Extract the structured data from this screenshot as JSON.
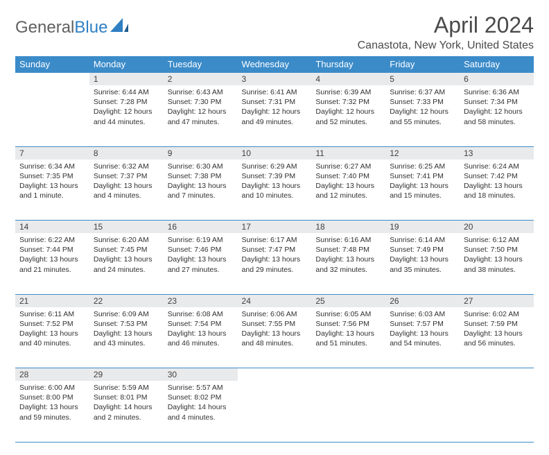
{
  "brand": {
    "part1": "General",
    "part2": "Blue"
  },
  "title": "April 2024",
  "location": "Canastota, New York, United States",
  "colors": {
    "header_bg": "#3b8bc9",
    "header_text": "#ffffff",
    "daynum_bg": "#e9eaeb",
    "text": "#303030",
    "brand_gray": "#606060",
    "brand_blue": "#2f7fc2"
  },
  "weekdays": [
    "Sunday",
    "Monday",
    "Tuesday",
    "Wednesday",
    "Thursday",
    "Friday",
    "Saturday"
  ],
  "weeks": [
    [
      null,
      {
        "n": "1",
        "sr": "6:44 AM",
        "ss": "7:28 PM",
        "dl": "12 hours and 44 minutes."
      },
      {
        "n": "2",
        "sr": "6:43 AM",
        "ss": "7:30 PM",
        "dl": "12 hours and 47 minutes."
      },
      {
        "n": "3",
        "sr": "6:41 AM",
        "ss": "7:31 PM",
        "dl": "12 hours and 49 minutes."
      },
      {
        "n": "4",
        "sr": "6:39 AM",
        "ss": "7:32 PM",
        "dl": "12 hours and 52 minutes."
      },
      {
        "n": "5",
        "sr": "6:37 AM",
        "ss": "7:33 PM",
        "dl": "12 hours and 55 minutes."
      },
      {
        "n": "6",
        "sr": "6:36 AM",
        "ss": "7:34 PM",
        "dl": "12 hours and 58 minutes."
      }
    ],
    [
      {
        "n": "7",
        "sr": "6:34 AM",
        "ss": "7:35 PM",
        "dl": "13 hours and 1 minute."
      },
      {
        "n": "8",
        "sr": "6:32 AM",
        "ss": "7:37 PM",
        "dl": "13 hours and 4 minutes."
      },
      {
        "n": "9",
        "sr": "6:30 AM",
        "ss": "7:38 PM",
        "dl": "13 hours and 7 minutes."
      },
      {
        "n": "10",
        "sr": "6:29 AM",
        "ss": "7:39 PM",
        "dl": "13 hours and 10 minutes."
      },
      {
        "n": "11",
        "sr": "6:27 AM",
        "ss": "7:40 PM",
        "dl": "13 hours and 12 minutes."
      },
      {
        "n": "12",
        "sr": "6:25 AM",
        "ss": "7:41 PM",
        "dl": "13 hours and 15 minutes."
      },
      {
        "n": "13",
        "sr": "6:24 AM",
        "ss": "7:42 PM",
        "dl": "13 hours and 18 minutes."
      }
    ],
    [
      {
        "n": "14",
        "sr": "6:22 AM",
        "ss": "7:44 PM",
        "dl": "13 hours and 21 minutes."
      },
      {
        "n": "15",
        "sr": "6:20 AM",
        "ss": "7:45 PM",
        "dl": "13 hours and 24 minutes."
      },
      {
        "n": "16",
        "sr": "6:19 AM",
        "ss": "7:46 PM",
        "dl": "13 hours and 27 minutes."
      },
      {
        "n": "17",
        "sr": "6:17 AM",
        "ss": "7:47 PM",
        "dl": "13 hours and 29 minutes."
      },
      {
        "n": "18",
        "sr": "6:16 AM",
        "ss": "7:48 PM",
        "dl": "13 hours and 32 minutes."
      },
      {
        "n": "19",
        "sr": "6:14 AM",
        "ss": "7:49 PM",
        "dl": "13 hours and 35 minutes."
      },
      {
        "n": "20",
        "sr": "6:12 AM",
        "ss": "7:50 PM",
        "dl": "13 hours and 38 minutes."
      }
    ],
    [
      {
        "n": "21",
        "sr": "6:11 AM",
        "ss": "7:52 PM",
        "dl": "13 hours and 40 minutes."
      },
      {
        "n": "22",
        "sr": "6:09 AM",
        "ss": "7:53 PM",
        "dl": "13 hours and 43 minutes."
      },
      {
        "n": "23",
        "sr": "6:08 AM",
        "ss": "7:54 PM",
        "dl": "13 hours and 46 minutes."
      },
      {
        "n": "24",
        "sr": "6:06 AM",
        "ss": "7:55 PM",
        "dl": "13 hours and 48 minutes."
      },
      {
        "n": "25",
        "sr": "6:05 AM",
        "ss": "7:56 PM",
        "dl": "13 hours and 51 minutes."
      },
      {
        "n": "26",
        "sr": "6:03 AM",
        "ss": "7:57 PM",
        "dl": "13 hours and 54 minutes."
      },
      {
        "n": "27",
        "sr": "6:02 AM",
        "ss": "7:59 PM",
        "dl": "13 hours and 56 minutes."
      }
    ],
    [
      {
        "n": "28",
        "sr": "6:00 AM",
        "ss": "8:00 PM",
        "dl": "13 hours and 59 minutes."
      },
      {
        "n": "29",
        "sr": "5:59 AM",
        "ss": "8:01 PM",
        "dl": "14 hours and 2 minutes."
      },
      {
        "n": "30",
        "sr": "5:57 AM",
        "ss": "8:02 PM",
        "dl": "14 hours and 4 minutes."
      },
      null,
      null,
      null,
      null
    ]
  ],
  "labels": {
    "sunrise": "Sunrise:",
    "sunset": "Sunset:",
    "daylight": "Daylight:"
  }
}
